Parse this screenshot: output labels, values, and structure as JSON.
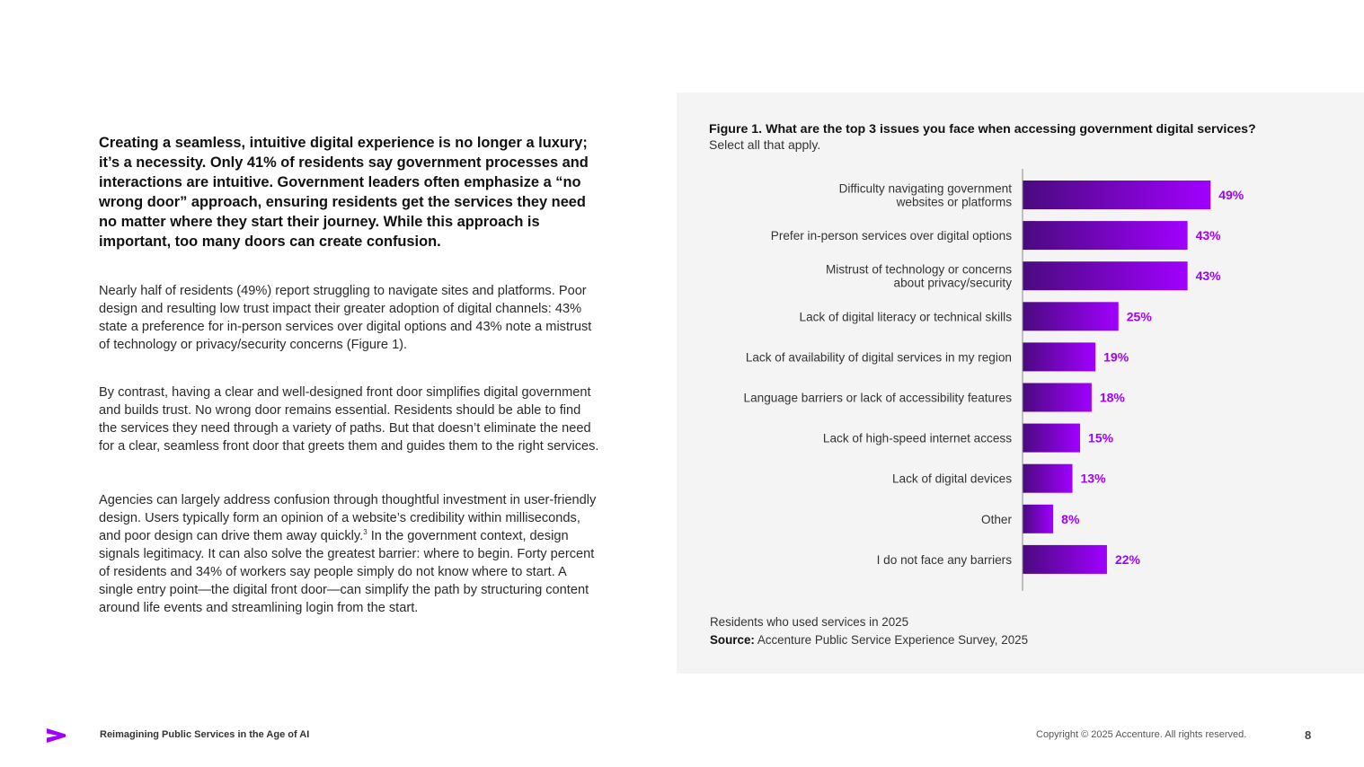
{
  "body": {
    "lead": "Creating a seamless, intuitive digital experience is no longer a luxury; it’s a necessity. Only 41% of residents say government processes and interactions are intuitive. Government leaders often emphasize a “no wrong door” approach, ensuring residents get the services they need no matter where they start their journey. While this approach is important, too many doors can create confusion.",
    "para1": "Nearly half of residents (49%) report struggling to navigate sites and platforms. Poor design and resulting low trust impact their greater adoption of digital channels: 43% state a preference for in-person services over digital options and 43% note a mistrust of technology or privacy/security concerns (Figure 1).",
    "para2": "By contrast, having a clear and well-designed front door simplifies digital government and builds trust. No wrong door remains essential. Residents should be able to find the services they need through a variety of paths. But that doesn’t eliminate the need for a clear, seamless front door that greets them and guides them to the right services.",
    "para3_a": "Agencies can largely address confusion through thoughtful investment in user-friendly design. Users typically form an opinion of a website’s credibility within milliseconds, and poor design can drive them away quickly.",
    "para3_sup": "3",
    "para3_b": " In the government context, design signals legitimacy. It can also solve the greatest barrier: where to begin. Forty percent of residents and 34% of workers say people simply do not know where to start. A single entry point—the digital front door—can simplify the path by structuring content around life events and streamlining login from the start."
  },
  "figure": {
    "note": "Residents who used services in 2025",
    "source_label": "Source:",
    "source_text": " Accenture Public Service Experience Survey, 2025"
  },
  "chart_data": {
    "type": "bar",
    "orientation": "horizontal",
    "title": "Figure 1. What are the top 3 issues you face when accessing government digital services?",
    "subtitle": "Select all that apply.",
    "categories": [
      [
        "Difficulty navigating government",
        "websites or platforms"
      ],
      [
        "Prefer in-person services over digital options"
      ],
      [
        "Mistrust of technology or concerns",
        "about privacy/security"
      ],
      [
        "Lack of digital literacy or technical skills"
      ],
      [
        "Lack of availability of digital services in my region"
      ],
      [
        "Language barriers or lack of accessibility features"
      ],
      [
        "Lack of high-speed internet access"
      ],
      [
        "Lack of digital devices"
      ],
      [
        "Other"
      ],
      [
        "I do not face any barriers"
      ]
    ],
    "values": [
      49,
      43,
      43,
      25,
      19,
      18,
      15,
      13,
      8,
      22
    ],
    "value_suffix": "%",
    "grid": false,
    "colors": {
      "bar_start": "#4a0a7f",
      "bar_end": "#a100ff",
      "label": "#a100ff",
      "axis": "#8a8a8a"
    }
  },
  "footer": {
    "title": "Reimagining Public Services in the Age of AI",
    "copyright": "Copyright © 2025 Accenture. All rights reserved.",
    "page": "8",
    "logo_icon": "accenture-chevron-icon",
    "brand_color": "#a100ff"
  }
}
